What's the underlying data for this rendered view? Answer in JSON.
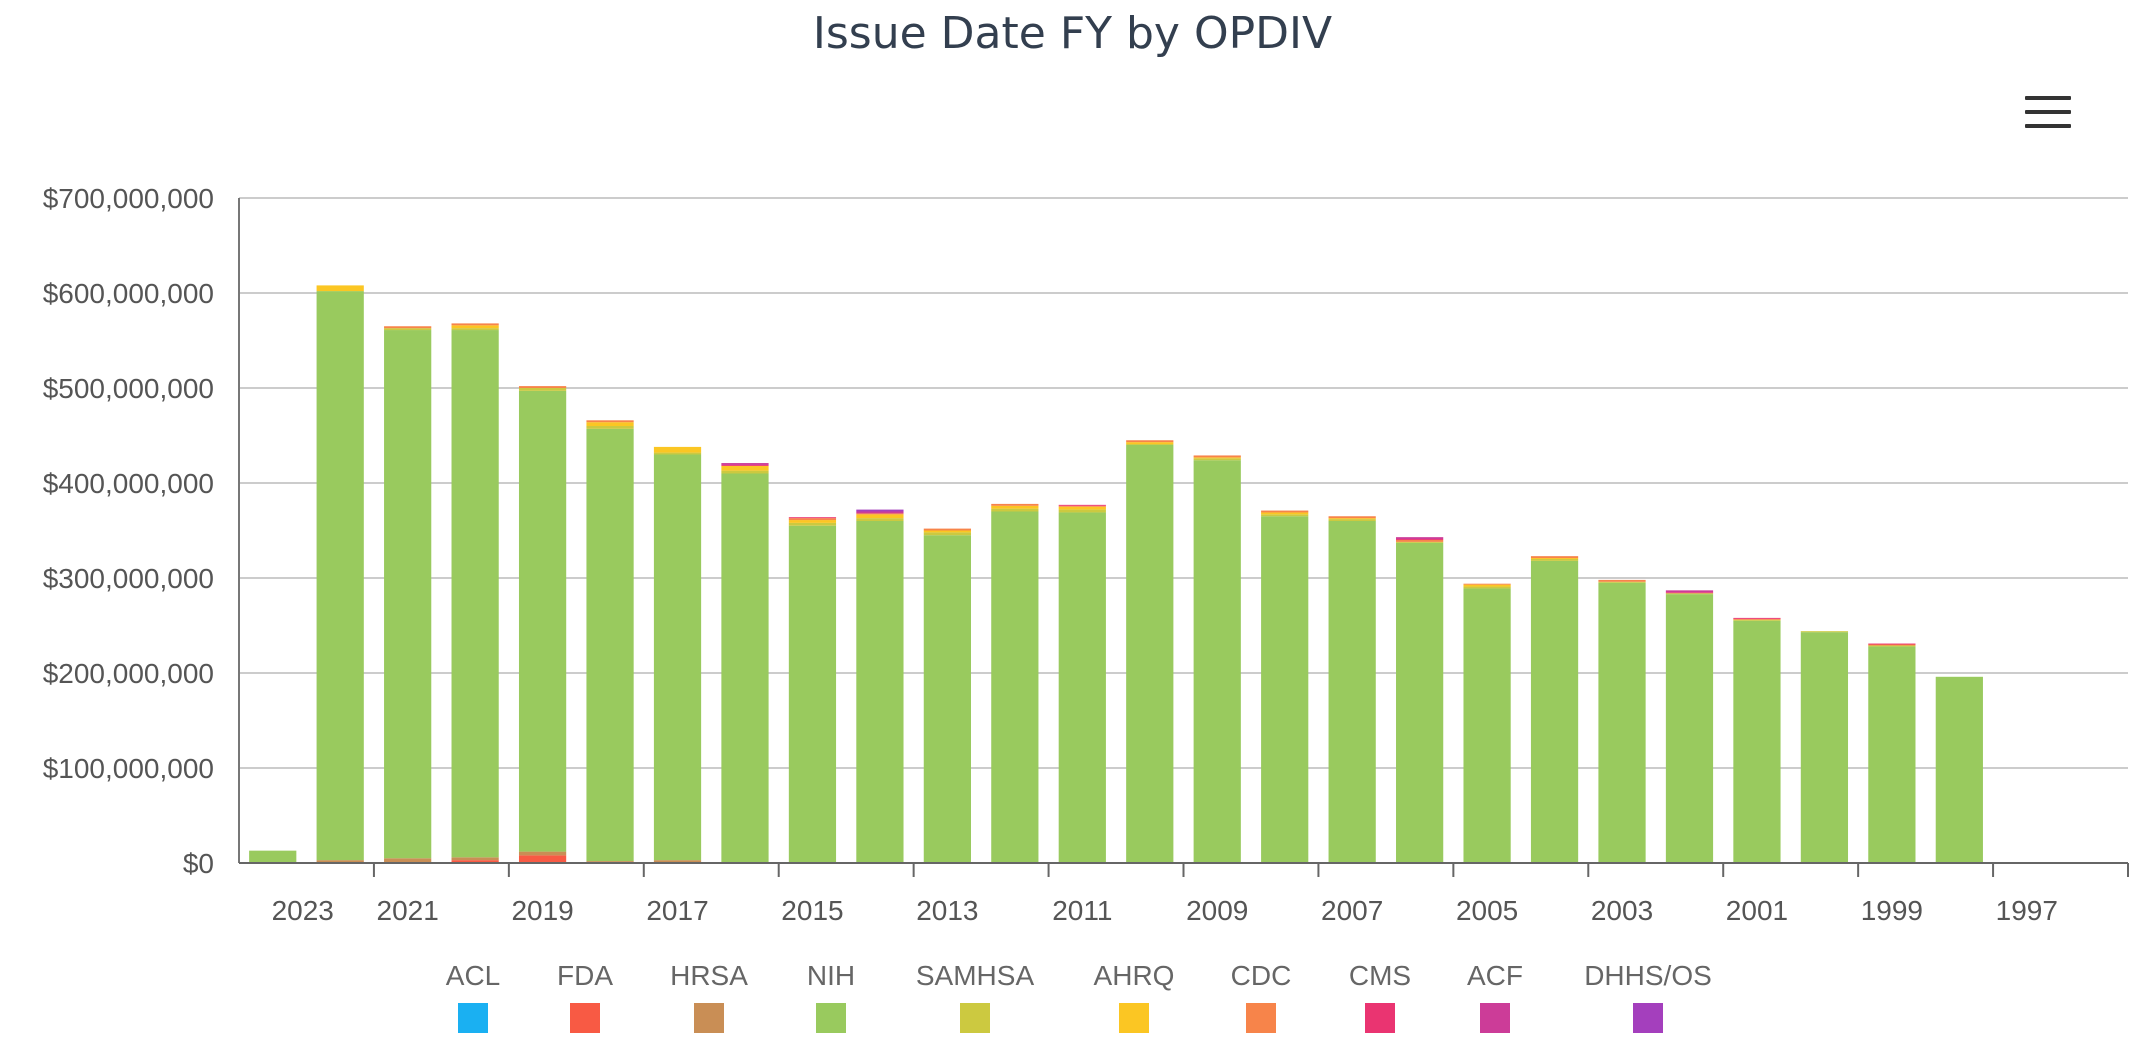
{
  "chart_data": {
    "type": "bar",
    "stacked": true,
    "title": "Issue Date FY by OPDIV",
    "xlabel": "",
    "ylabel": "",
    "ylim": [
      0,
      700000000
    ],
    "y_ticks": [
      "$0",
      "$100,000,000",
      "$200,000,000",
      "$300,000,000",
      "$400,000,000",
      "$500,000,000",
      "$600,000,000",
      "$700,000,000"
    ],
    "categories": [
      "2023",
      "2022",
      "2021",
      "2020",
      "2019",
      "2018",
      "2017",
      "2016",
      "2015",
      "2014",
      "2013",
      "2012",
      "2011",
      "2010",
      "2009",
      "2008",
      "2007",
      "2006",
      "2005",
      "2004",
      "2003",
      "2002",
      "2001",
      "2000",
      "1999",
      "1998",
      "1997",
      "1996"
    ],
    "x_tick_labels": [
      "2023",
      "2021",
      "2019",
      "2017",
      "2015",
      "2013",
      "2011",
      "2009",
      "2007",
      "2005",
      "2003",
      "2001",
      "1999",
      "1997"
    ],
    "legend_position": "bottom",
    "grid": true,
    "series": [
      {
        "name": "ACL",
        "color": "#1ab0f2",
        "values": [
          0,
          0,
          0,
          0,
          0,
          0,
          0,
          0,
          0,
          0,
          0,
          0,
          0,
          0,
          0,
          0,
          0,
          0,
          0,
          0,
          0,
          0,
          0,
          0,
          0,
          0,
          0,
          0
        ]
      },
      {
        "name": "FDA",
        "color": "#f85a44",
        "values": [
          0,
          1000000,
          1000000,
          3000000,
          8000000,
          0,
          0,
          0,
          0,
          0,
          0,
          0,
          0,
          0,
          0,
          0,
          0,
          0,
          0,
          0,
          0,
          0,
          0,
          0,
          0,
          0,
          0,
          0
        ]
      },
      {
        "name": "HRSA",
        "color": "#c98e55",
        "values": [
          0,
          2000000,
          4000000,
          3000000,
          4000000,
          2000000,
          3000000,
          0,
          0,
          0,
          0,
          0,
          0,
          0,
          0,
          0,
          0,
          0,
          0,
          0,
          0,
          0,
          0,
          0,
          0,
          0,
          0,
          0
        ]
      },
      {
        "name": "NIH",
        "color": "#99ca5e",
        "values": [
          13000000,
          599000000,
          556000000,
          555000000,
          485000000,
          455000000,
          427000000,
          410000000,
          355000000,
          360000000,
          345000000,
          370000000,
          369000000,
          440000000,
          424000000,
          365000000,
          360000000,
          337000000,
          289000000,
          318000000,
          295000000,
          283000000,
          255000000,
          243000000,
          228000000,
          196000000,
          0,
          0
        ]
      },
      {
        "name": "SAMHSA",
        "color": "#ccc940",
        "values": [
          0,
          0,
          2000000,
          2000000,
          3000000,
          3000000,
          2000000,
          3000000,
          3000000,
          3000000,
          3000000,
          3000000,
          3000000,
          1000000,
          2000000,
          2000000,
          2000000,
          1000000,
          2000000,
          2000000,
          1000000,
          1000000,
          1000000,
          1000000,
          1000000,
          0,
          0,
          0
        ]
      },
      {
        "name": "AHRQ",
        "color": "#fbc623",
        "values": [
          0,
          6000000,
          0,
          3000000,
          0,
          4000000,
          6000000,
          5000000,
          3000000,
          4000000,
          2000000,
          3000000,
          3000000,
          2000000,
          1000000,
          2000000,
          1000000,
          0,
          2000000,
          1000000,
          0,
          0,
          0,
          0,
          0,
          0,
          0,
          0
        ]
      },
      {
        "name": "CDC",
        "color": "#f7844a",
        "values": [
          0,
          0,
          2000000,
          2000000,
          2000000,
          2000000,
          0,
          0,
          2000000,
          1000000,
          2000000,
          2000000,
          1000000,
          2000000,
          2000000,
          2000000,
          2000000,
          2000000,
          1000000,
          2000000,
          2000000,
          0,
          1000000,
          0,
          1000000,
          0,
          0,
          0
        ]
      },
      {
        "name": "CMS",
        "color": "#ea3471",
        "values": [
          0,
          0,
          0,
          0,
          0,
          0,
          0,
          1000000,
          1000000,
          0,
          0,
          0,
          1000000,
          0,
          0,
          0,
          0,
          1000000,
          0,
          0,
          0,
          1000000,
          1000000,
          0,
          1000000,
          0,
          0,
          0
        ]
      },
      {
        "name": "ACF",
        "color": "#cc3c98",
        "values": [
          0,
          0,
          0,
          0,
          0,
          0,
          0,
          2000000,
          0,
          2000000,
          0,
          0,
          0,
          0,
          0,
          0,
          0,
          2000000,
          0,
          0,
          0,
          2000000,
          0,
          0,
          0,
          0,
          0,
          0
        ]
      },
      {
        "name": "DHHS/OS",
        "color": "#a43fbd",
        "values": [
          0,
          0,
          0,
          0,
          0,
          0,
          0,
          0,
          0,
          2000000,
          0,
          0,
          0,
          0,
          0,
          0,
          0,
          0,
          0,
          0,
          0,
          0,
          0,
          0,
          0,
          0,
          0,
          0
        ]
      }
    ]
  },
  "menu": {
    "icon": "hamburger-menu-icon"
  }
}
